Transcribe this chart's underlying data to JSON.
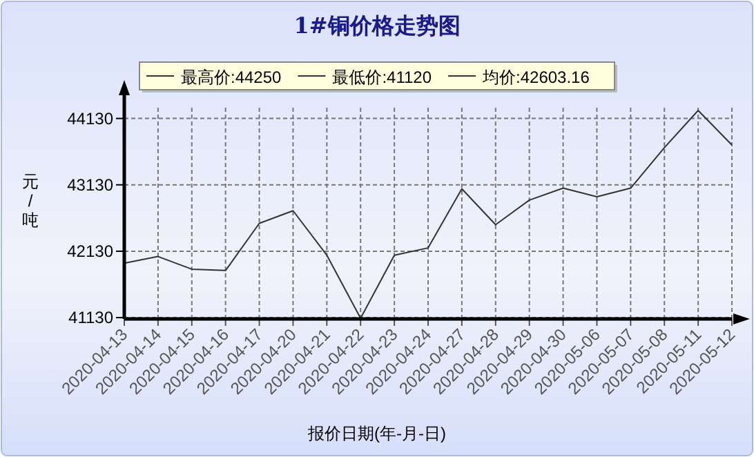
{
  "chart_data": {
    "type": "line",
    "title": "1#铜价格走势图",
    "xlabel": "报价日期(年-月-日)",
    "ylabel": "元/吨",
    "annotations": [
      "最高价:44250",
      "最低价:41120",
      "均价:42603.16"
    ],
    "categories": [
      "2020-04-13",
      "2020-04-14",
      "2020-04-15",
      "2020-04-16",
      "2020-04-17",
      "2020-04-20",
      "2020-04-21",
      "2020-04-22",
      "2020-04-23",
      "2020-04-24",
      "2020-04-27",
      "2020-04-28",
      "2020-04-29",
      "2020-04-30",
      "2020-05-06",
      "2020-05-07",
      "2020-05-08",
      "2020-05-11",
      "2020-05-12"
    ],
    "series": [
      {
        "color": "#333333",
        "values": [
          41950,
          42050,
          41860,
          41840,
          42550,
          42740,
          42070,
          41120,
          42070,
          42180,
          43070,
          42530,
          42900,
          43080,
          42950,
          43080,
          43690,
          44250,
          43730
        ]
      }
    ],
    "ylim": [
      41110,
      44500
    ],
    "yticks": [
      41130,
      42130,
      43130,
      44130
    ],
    "grid": true,
    "line_style": "solid",
    "marker": "none"
  }
}
